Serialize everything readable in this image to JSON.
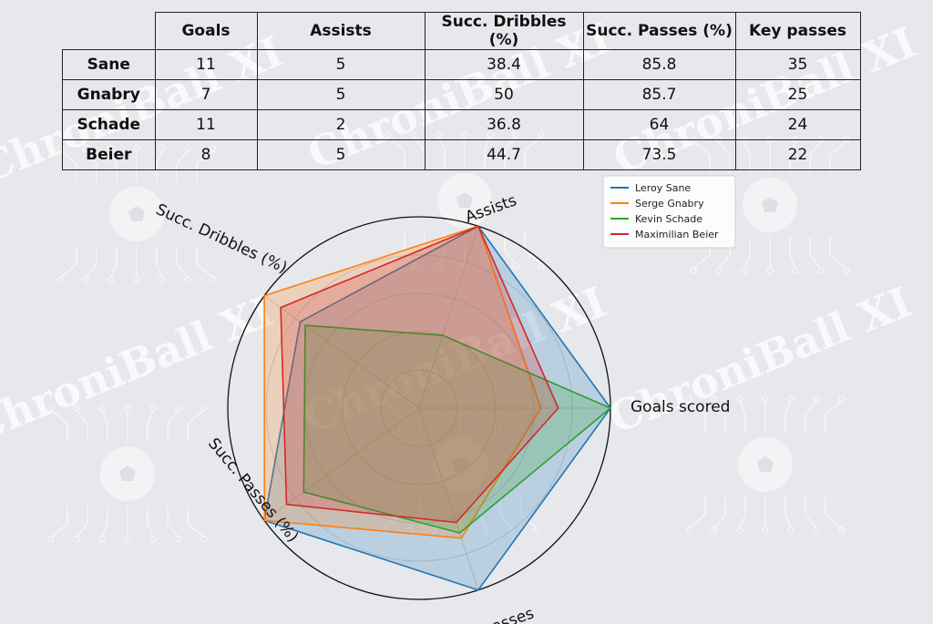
{
  "watermark": {
    "text": "ChroniBall XI",
    "color": "#ffffff"
  },
  "table": {
    "columns": [
      "Goals",
      "Assists",
      "Succ. Dribbles (%)",
      "Succ. Passes (%)",
      "Key passes"
    ],
    "rows": [
      {
        "name": "Sane",
        "cells": [
          "11",
          "5",
          "38.4",
          "85.8",
          "35"
        ]
      },
      {
        "name": "Gnabry",
        "cells": [
          "7",
          "5",
          "50",
          "85.7",
          "25"
        ]
      },
      {
        "name": "Schade",
        "cells": [
          "11",
          "2",
          "36.8",
          "64",
          "24"
        ]
      },
      {
        "name": "Beier",
        "cells": [
          "8",
          "5",
          "44.7",
          "73.5",
          "22"
        ]
      }
    ]
  },
  "chart_data": {
    "type": "radar",
    "axes": [
      "Goals scored",
      "Assists",
      "Succ. Dribbles (%)",
      "Succ. Passes (%)",
      "Key passes"
    ],
    "axis_max": [
      11,
      5,
      50,
      85.8,
      35
    ],
    "grid": true,
    "legend_position": "top-right",
    "series": [
      {
        "name": "Leroy Sane",
        "color": "#1f77b4",
        "values": [
          11,
          5,
          38.4,
          85.8,
          35
        ]
      },
      {
        "name": "Serge Gnabry",
        "color": "#ff7f0e",
        "values": [
          7,
          5,
          50,
          85.7,
          25
        ]
      },
      {
        "name": "Kevin Schade",
        "color": "#2ca02c",
        "values": [
          11,
          2,
          36.8,
          64,
          24
        ]
      },
      {
        "name": "Maximilian Beier",
        "color": "#d62728",
        "values": [
          8,
          5,
          44.7,
          73.5,
          22
        ]
      }
    ]
  }
}
